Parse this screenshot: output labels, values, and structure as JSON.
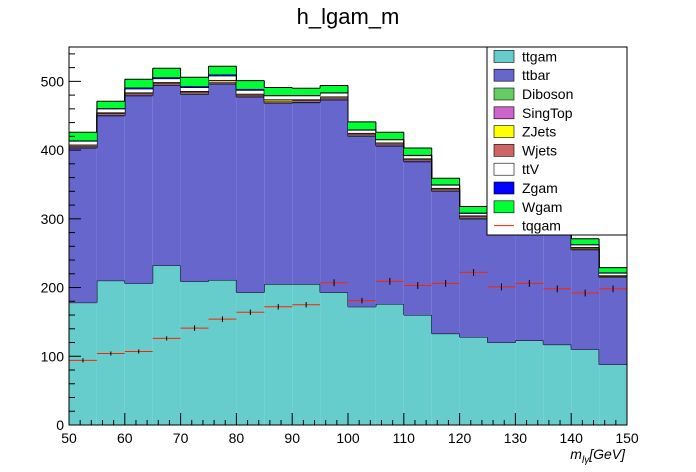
{
  "chart_data": {
    "type": "bar",
    "title": "h_lgam_m",
    "xlabel": "m_{lγ}[GeV]",
    "xlabel_main": "m",
    "xlabel_sub": "lγ",
    "xlabel_unit": "[GeV]",
    "ylabel": "",
    "xlim": [
      50,
      150
    ],
    "ylim": [
      0,
      550
    ],
    "x_ticks": [
      "50",
      "60",
      "70",
      "80",
      "90",
      "100",
      "110",
      "120",
      "130",
      "140",
      "150"
    ],
    "y_ticks": [
      "0",
      "100",
      "200",
      "300",
      "400",
      "500"
    ],
    "bin_edges": [
      50,
      55,
      60,
      65,
      70,
      75,
      80,
      85,
      90,
      95,
      100,
      105,
      110,
      115,
      120,
      125,
      130,
      135,
      140,
      145,
      150
    ],
    "stacked": true,
    "legend_position": "top-right",
    "series": [
      {
        "name": "ttgam",
        "color": "#66cccc",
        "values": [
          178,
          210,
          206,
          232,
          209,
          211,
          193,
          205,
          205,
          193,
          172,
          176,
          160,
          133,
          128,
          120,
          123,
          117,
          110,
          88
        ]
      },
      {
        "name": "ttbar",
        "color": "#6666cc",
        "values": [
          225,
          240,
          273,
          262,
          272,
          285,
          284,
          263,
          264,
          280,
          248,
          230,
          223,
          207,
          172,
          170,
          165,
          162,
          145,
          127
        ]
      },
      {
        "name": "Diboson",
        "color": "#66cc66",
        "values": [
          1,
          1,
          1,
          1,
          1,
          1,
          1,
          1,
          1,
          1,
          1,
          1,
          1,
          1,
          1,
          1,
          1,
          1,
          1,
          0
        ]
      },
      {
        "name": "SingTop",
        "color": "#cc66cc",
        "values": [
          2,
          2,
          2,
          2,
          2,
          2,
          2,
          2,
          2,
          2,
          2,
          2,
          2,
          2,
          2,
          2,
          2,
          2,
          1,
          1
        ]
      },
      {
        "name": "ZJets",
        "color": "#ffff00",
        "values": [
          1,
          1,
          1,
          1,
          1,
          2,
          1,
          2,
          1,
          1,
          1,
          1,
          1,
          1,
          1,
          1,
          1,
          1,
          1,
          1
        ]
      },
      {
        "name": "Wjets",
        "color": "#cc6666",
        "values": [
          1,
          1,
          1,
          1,
          1,
          1,
          1,
          1,
          1,
          1,
          1,
          1,
          1,
          1,
          1,
          1,
          1,
          1,
          1,
          1
        ]
      },
      {
        "name": "ttV",
        "color": "#ffffff",
        "values": [
          5,
          5,
          5,
          5,
          5,
          6,
          5,
          5,
          5,
          5,
          4,
          4,
          4,
          4,
          3,
          3,
          3,
          3,
          3,
          3
        ]
      },
      {
        "name": "Zgam",
        "color": "#0000ff",
        "values": [
          1,
          1,
          2,
          2,
          2,
          2,
          2,
          1,
          1,
          1,
          1,
          1,
          1,
          1,
          1,
          1,
          1,
          1,
          1,
          1
        ]
      },
      {
        "name": "Wgam",
        "color": "#00ff33",
        "values": [
          12,
          10,
          12,
          13,
          13,
          12,
          12,
          11,
          10,
          10,
          11,
          10,
          10,
          9,
          9,
          9,
          9,
          9,
          8,
          7
        ]
      }
    ],
    "overlay": {
      "name": "tqgam",
      "color": "#ff2200",
      "values": [
        94,
        104,
        107,
        126,
        141,
        154,
        164,
        172,
        175,
        207,
        181,
        209,
        203,
        206,
        222,
        201,
        206,
        198,
        192,
        198
      ],
      "errors": [
        3,
        3,
        3,
        3,
        4,
        4,
        4,
        4,
        4,
        5,
        4,
        5,
        5,
        5,
        5,
        5,
        5,
        5,
        5,
        5
      ]
    }
  }
}
